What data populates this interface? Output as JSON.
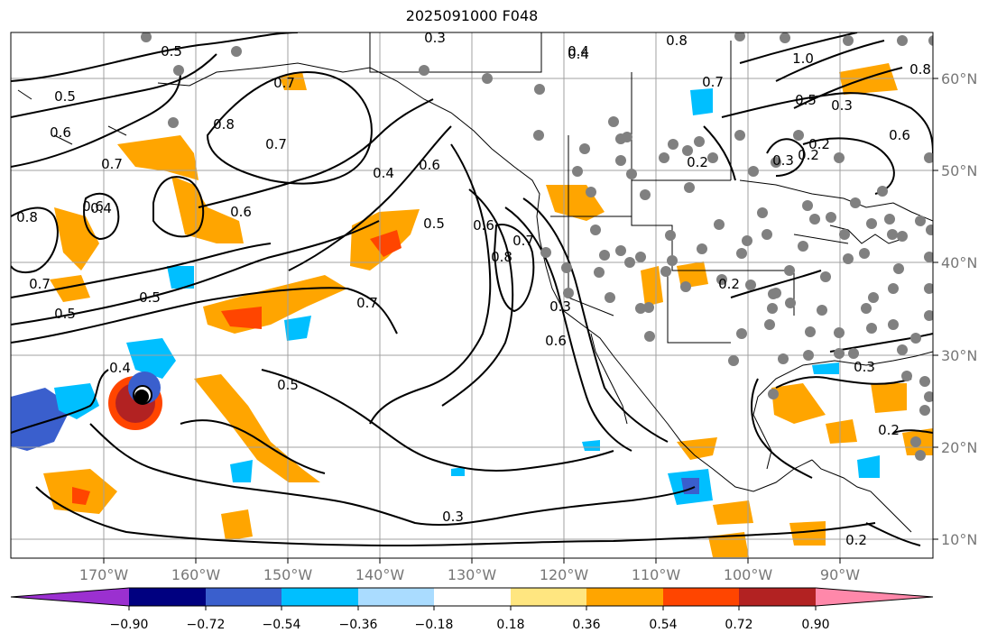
{
  "title": "2025091000 F048",
  "longitude_labels": [
    "170°W",
    "160°W",
    "150°W",
    "140°W",
    "130°W",
    "120°W",
    "110°W",
    "100°W",
    "90°W"
  ],
  "latitude_labels": [
    "60°N",
    "50°N",
    "40°N",
    "30°N",
    "20°N",
    "10°N"
  ],
  "contour_labels": [
    "0.3",
    "0.4",
    "0.5",
    "0.6",
    "0.7",
    "0.8",
    "0.2",
    "0.4",
    "0.7",
    "0.5",
    "0.6",
    "0.8",
    "0.7",
    "0.6",
    "0.7",
    "0.4",
    "0.6",
    "0.5",
    "0.5",
    "0.7",
    "0.8",
    "0.5",
    "0.6",
    "0.7",
    "0.3",
    "0.6",
    "0.5",
    "0.3",
    "0.4",
    "0.3",
    "0.2",
    "0.8",
    "0.2",
    "0.3",
    "0.4",
    "0.2",
    "0.2",
    "0.5",
    "1.0",
    "0.7",
    "0.6",
    "0.8",
    "0.3",
    "0.2"
  ],
  "colorbar": {
    "colors": [
      "#9b30d0",
      "#000080",
      "#3a5fcd",
      "#00bfff",
      "#aadcff",
      "#ffffff",
      "#ffe680",
      "#ffa500",
      "#ff4500",
      "#b22222",
      "#ff88aa"
    ],
    "tick_labels": [
      "−0.90",
      "−0.72",
      "−0.54",
      "−0.36",
      "−0.18",
      "0.18",
      "0.36",
      "0.54",
      "0.72",
      "0.90"
    ]
  },
  "colors": {
    "station_dot": "#808080",
    "contour": "#000000",
    "grid": "#a0a0a0"
  }
}
